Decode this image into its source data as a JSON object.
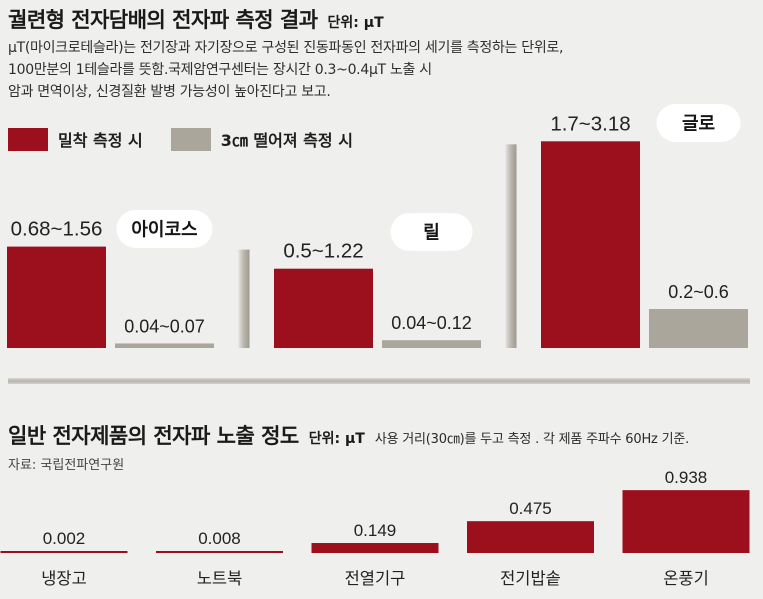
{
  "colors": {
    "background": "#efefed",
    "label_pill": "#ffffff"
  },
  "header": {
    "description": [
      "μT(마이크로테슬라)는 전기장과 자기장으로 구성된 진동파동인 전자파의 세기를 측정하는 단위로,",
      "100만분의 1테슬라를 뜻함.국제암연구센터는 장시간 0.3~0.4μT 노출 시",
      "암과 면역이상, 신경질환 발병 가능성이 높아진다고 보고."
    ]
  },
  "chart_data": [
    {
      "type": "bar",
      "title": "궐련형 전자담배의 전자파 측정 결과",
      "unit_label": "단위: μT",
      "categories": [
        "아이코스",
        "릴",
        "글로"
      ],
      "series": [
        {
          "name": "밀착 측정 시",
          "color": "#9c0f1d",
          "low": [
            0.68,
            0.5,
            1.7
          ],
          "high": [
            1.56,
            1.22,
            3.18
          ],
          "labels": [
            "0.68~1.56",
            "0.5~1.22",
            "1.7~3.18"
          ]
        },
        {
          "name": "3㎝ 떨어져 측정 시",
          "color": "#aba69c",
          "low": [
            0.04,
            0.04,
            0.2
          ],
          "high": [
            0.07,
            0.12,
            0.6
          ],
          "labels": [
            "0.04~0.07",
            "0.04~0.12",
            "0.2~0.6"
          ]
        }
      ],
      "grid": false,
      "legend": "top-left"
    },
    {
      "type": "bar",
      "title": "일반 전자제품의 전자파 노출 정도",
      "unit_label": "단위: μT",
      "note": "사용 거리(30㎝)를 두고 측정 . 각 제품 주파수 60Hz 기준.",
      "source": "자료: 국립전파연구원",
      "categories": [
        "냉장고",
        "노트북",
        "전열기구",
        "전기밥솥",
        "온풍기"
      ],
      "values": [
        0.002,
        0.008,
        0.149,
        0.475,
        0.938
      ],
      "color": "#9c0f1d",
      "grid": false
    }
  ]
}
